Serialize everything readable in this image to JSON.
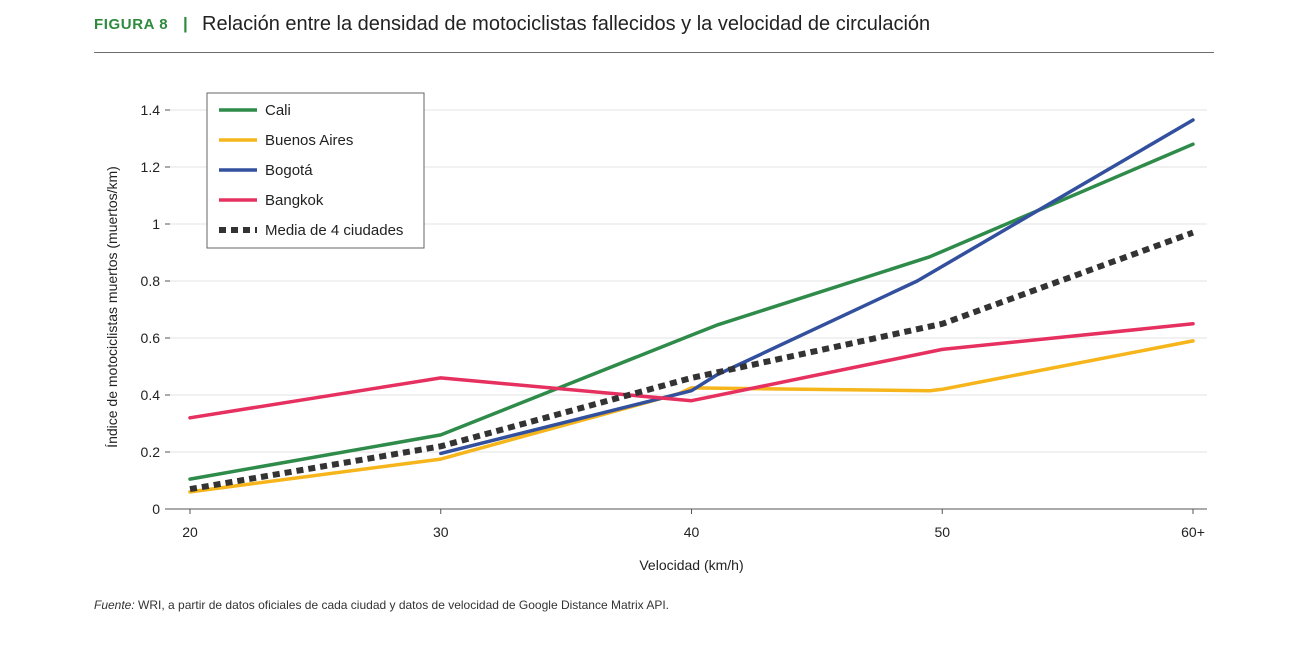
{
  "header": {
    "figure_label": "FIGURA 8",
    "separator": "|",
    "title": "Relación entre la densidad de motociclistas fallecidos y la velocidad de circulación"
  },
  "source": {
    "label": "Fuente:",
    "text": " WRI, a partir de datos oficiales de cada ciudad y datos de velocidad de Google Distance Matrix API."
  },
  "chart_data": {
    "type": "line",
    "xlabel": "Velocidad (km/h)",
    "ylabel": "Índice de motociclistas muertos (muertos/km)",
    "x_ticks": [
      20,
      30,
      40,
      50,
      60
    ],
    "x_tick_labels": [
      "20",
      "30",
      "40",
      "50",
      "60+"
    ],
    "xlim": [
      20,
      60
    ],
    "y_ticks": [
      0,
      0.2,
      0.4,
      0.6,
      0.8,
      1,
      1.2,
      1.4
    ],
    "y_tick_labels": [
      "0",
      "0.2",
      "0.4",
      "0.6",
      "0.8",
      "1",
      "1.2",
      "1.4"
    ],
    "ylim": [
      0,
      1.4
    ],
    "grid": true,
    "legend_position": "top-left",
    "series": [
      {
        "name": "Cali",
        "color": "#2e8b4a",
        "dashed": false,
        "x": [
          20,
          30,
          40,
          41,
          49.5,
          60
        ],
        "y": [
          0.105,
          0.26,
          0.61,
          0.645,
          0.885,
          1.28
        ]
      },
      {
        "name": "Buenos Aires",
        "color": "#f5b51b",
        "dashed": false,
        "x": [
          20,
          30,
          39.5,
          40,
          49.5,
          50,
          60
        ],
        "y": [
          0.06,
          0.175,
          0.405,
          0.425,
          0.415,
          0.42,
          0.59
        ]
      },
      {
        "name": "Bogotá",
        "color": "#33509e",
        "dashed": false,
        "x": [
          30,
          40,
          41,
          49,
          60
        ],
        "y": [
          0.195,
          0.415,
          0.47,
          0.8,
          1.365
        ]
      },
      {
        "name": "Bangkok",
        "color": "#e6305f",
        "dashed": false,
        "x": [
          20,
          30,
          40,
          50,
          60
        ],
        "y": [
          0.32,
          0.46,
          0.38,
          0.56,
          0.65
        ]
      },
      {
        "name": "Media de 4 ciudades",
        "color": "#333333",
        "dashed": true,
        "x": [
          20,
          30,
          40,
          50,
          60
        ],
        "y": [
          0.07,
          0.22,
          0.46,
          0.65,
          0.97
        ]
      }
    ]
  }
}
